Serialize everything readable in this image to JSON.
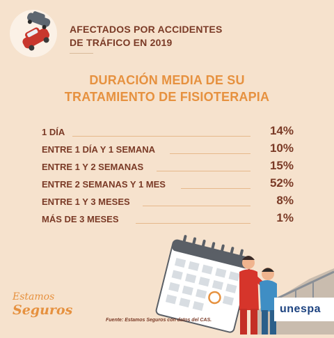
{
  "header": {
    "title_line1": "AFECTADOS POR ACCIDENTES",
    "title_line2": "DE TRÁFICO EN 2019"
  },
  "main_title": {
    "line1": "DURACIÓN MEDIA DE SU",
    "line2": "TRATAMIENTO DE FISIOTERAPIA"
  },
  "rows": [
    {
      "label": "1 DÍA",
      "value": "14%"
    },
    {
      "label": "ENTRE 1 DÍA Y 1 SEMANA",
      "value": "10%"
    },
    {
      "label": "ENTRE 1 Y 2 SEMANAS",
      "value": "15%"
    },
    {
      "label": "ENTRE 2 SEMANAS Y 1 MES",
      "value": "52%"
    },
    {
      "label": "ENTRE 1 Y 3 MESES",
      "value": "8%"
    },
    {
      "label": "MÁS DE 3  MESES",
      "value": "1%"
    }
  ],
  "footer": {
    "brand_line1": "Estamos",
    "brand_line2": "Seguros",
    "source": "Fuente: Estamos Seguros con datos del CAS.",
    "logo": "unespa"
  },
  "colors": {
    "background": "#f6e2cd",
    "heading": "#7a3a26",
    "accent": "#e6913f",
    "logo": "#1d4380"
  }
}
